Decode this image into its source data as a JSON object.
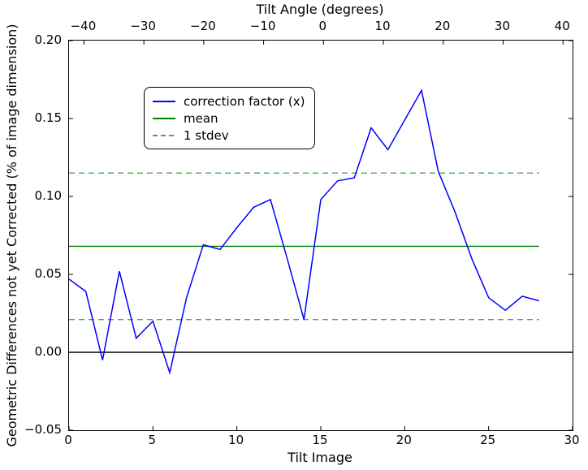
{
  "figure": {
    "top_axis_label": "Tilt Angle (degrees)",
    "bottom_axis_label": "Tilt Image",
    "y_axis_label": "Geometric Differences not yet Corrected (% of image dimension)"
  },
  "legend": {
    "items": [
      {
        "label": "correction factor (x)",
        "color": "#0000ff",
        "style": "solid"
      },
      {
        "label": "mean",
        "color": "#008000",
        "style": "solid"
      },
      {
        "label": "1 stdev",
        "color": "#52a852",
        "style": "dashed"
      }
    ]
  },
  "chart_data": {
    "type": "line",
    "title": "",
    "xlabel": "Tilt Image",
    "ylabel": "Geometric Differences not yet Corrected (% of image dimension)",
    "top_xlabel": "Tilt Angle (degrees)",
    "series_name": "correction factor (x)",
    "x": [
      0,
      1,
      2,
      3,
      4,
      5,
      6,
      7,
      8,
      9,
      10,
      11,
      12,
      13,
      14,
      15,
      16,
      17,
      18,
      19,
      20,
      21,
      22,
      23,
      24,
      25,
      26,
      27,
      28
    ],
    "values": [
      0.047,
      0.039,
      -0.005,
      0.052,
      0.009,
      0.02,
      -0.013,
      0.035,
      0.069,
      0.066,
      0.08,
      0.093,
      0.098,
      0.06,
      0.021,
      0.098,
      0.11,
      0.112,
      0.144,
      0.13,
      0.149,
      0.168,
      0.116,
      0.09,
      0.06,
      0.035,
      0.027,
      0.036,
      0.033
    ],
    "mean": 0.068,
    "stdev": 0.047,
    "zero_line": 0.0,
    "xlim": [
      0,
      30
    ],
    "ylim": [
      -0.05,
      0.2
    ],
    "top_xlim": [
      -42.5,
      41.6
    ],
    "grid": false,
    "legend_position": "upper left",
    "x_ticks": [
      {
        "label": "0",
        "value": 0
      },
      {
        "label": "5",
        "value": 5
      },
      {
        "label": "10",
        "value": 10
      },
      {
        "label": "15",
        "value": 15
      },
      {
        "label": "20",
        "value": 20
      },
      {
        "label": "25",
        "value": 25
      },
      {
        "label": "30",
        "value": 30
      }
    ],
    "y_ticks": [
      {
        "label": "0.20",
        "value": 0.2
      },
      {
        "label": "0.15",
        "value": 0.15
      },
      {
        "label": "0.10",
        "value": 0.1
      },
      {
        "label": "0.05",
        "value": 0.05
      },
      {
        "label": "0.00",
        "value": 0.0
      },
      {
        "label": "−0.05",
        "value": -0.05
      }
    ],
    "top_ticks": [
      {
        "label": "−40",
        "value": -40
      },
      {
        "label": "−30",
        "value": -30
      },
      {
        "label": "−20",
        "value": -20
      },
      {
        "label": "−10",
        "value": -10
      },
      {
        "label": "0",
        "value": 0
      },
      {
        "label": "10",
        "value": 10
      },
      {
        "label": "20",
        "value": 20
      },
      {
        "label": "30",
        "value": 30
      },
      {
        "label": "40",
        "value": 40
      }
    ],
    "colors": {
      "line": "#0000ff",
      "mean": "#008000",
      "stdev": "#52a852",
      "zero": "#000000",
      "spine": "#000000"
    }
  }
}
